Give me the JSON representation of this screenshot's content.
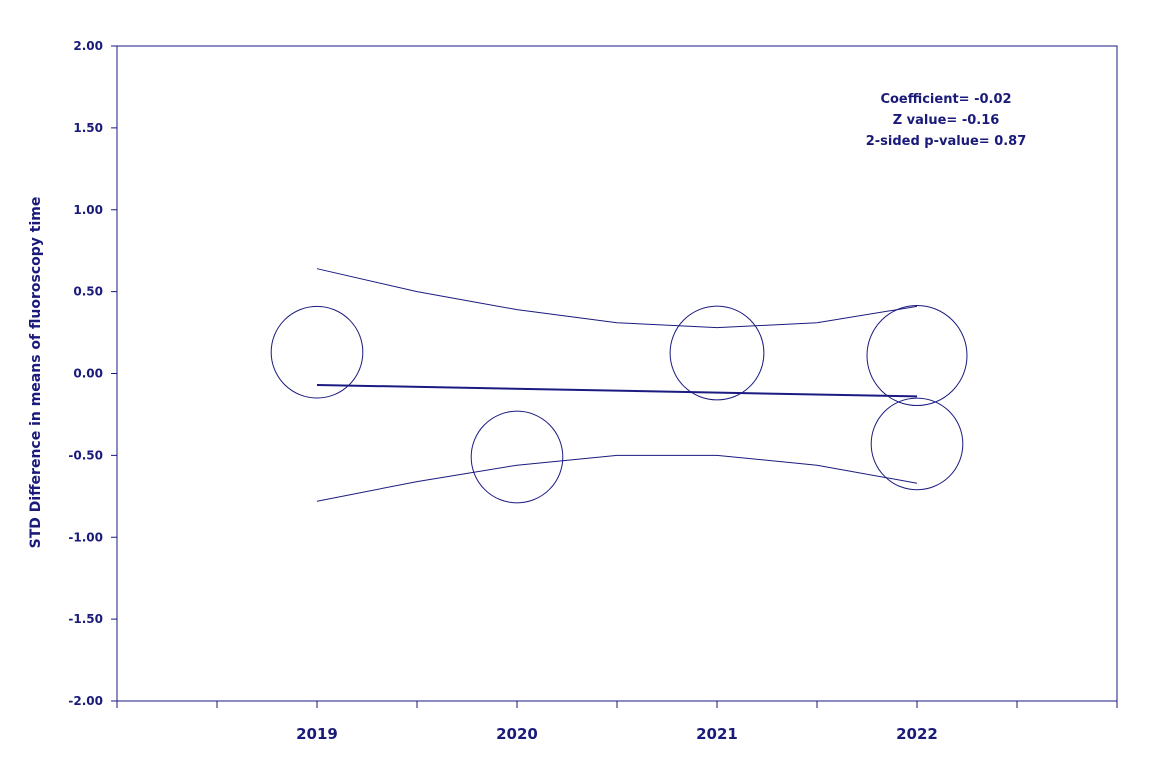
{
  "chart_data": {
    "type": "bubble",
    "y_label": "STD  Difference in means of fluoroscopy time",
    "annotations": [
      "Coefficient= -0.02",
      "Z value= -0.16",
      "2-sided p-value= 0.87"
    ],
    "color": "#1a1a80",
    "x": [
      2019,
      2020,
      2021,
      2022,
      2022
    ],
    "values": [
      0.13,
      -0.51,
      0.125,
      0.11,
      -0.43
    ],
    "sizes": [
      21,
      21,
      22,
      25,
      21
    ],
    "regression": {
      "x": [
        2019,
        2022
      ],
      "values": [
        -0.07,
        -0.14
      ]
    },
    "ci_x": [
      2019,
      2019.5,
      2020,
      2020.5,
      2021,
      2021.5,
      2022
    ],
    "ci_upper": [
      0.64,
      0.5,
      0.39,
      0.31,
      0.28,
      0.31,
      0.41
    ],
    "ci_lower": [
      -0.78,
      -0.66,
      -0.56,
      -0.5,
      -0.5,
      -0.56,
      -0.67
    ],
    "xlim": [
      2018,
      2023
    ],
    "xticks": [
      2019,
      2020,
      2021,
      2022
    ],
    "x_minor_ticks": [
      2018,
      2018.5,
      2019.5,
      2020.5,
      2021.5,
      2022.5,
      2023
    ],
    "ylim": [
      -2,
      2
    ],
    "yticks": [
      {
        "value": -2,
        "label": "-2.00"
      },
      {
        "value": -1.5,
        "label": "-1.50"
      },
      {
        "value": -1,
        "label": "-1.00"
      },
      {
        "value": -0.5,
        "label": "-0.50"
      },
      {
        "value": 0,
        "label": "0.00"
      },
      {
        "value": 0.5,
        "label": "0.50"
      },
      {
        "value": 1,
        "label": "1.00"
      },
      {
        "value": 1.5,
        "label": "1.50"
      },
      {
        "value": 2,
        "label": "2.00"
      }
    ]
  }
}
